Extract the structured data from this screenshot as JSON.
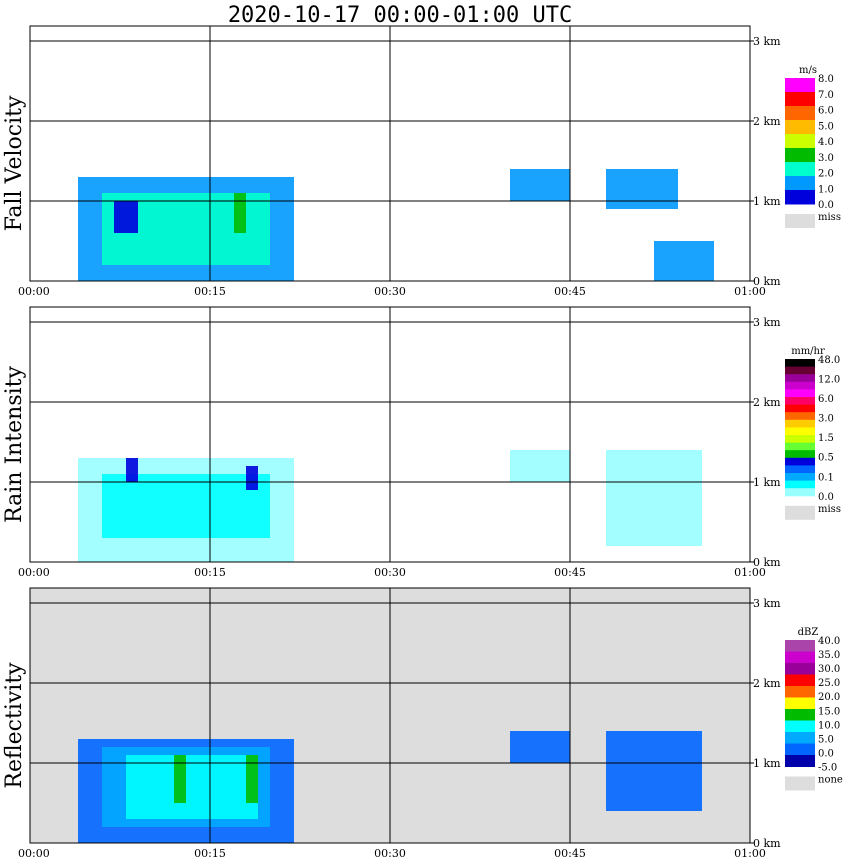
{
  "title": "2020-10-17   00:00-01:00 UTC",
  "chart_data": {
    "type": "heatmap",
    "x_ticks": [
      "00:00",
      "00:15",
      "00:30",
      "00:45",
      "01:00"
    ],
    "y_ticks": [
      "0 km",
      "1 km",
      "2 km",
      "3 km"
    ],
    "panels": [
      {
        "ylabel": "Fall Velocity",
        "background": "#ffffff",
        "colorbar": {
          "unit": "m/s",
          "labels": [
            "8.0",
            "7.0",
            "6.0",
            "5.0",
            "4.0",
            "3.0",
            "2.0",
            "1.0",
            "0.0"
          ],
          "colors": [
            "#ff00ff",
            "#ff0000",
            "#ff6600",
            "#ffbb00",
            "#ccff00",
            "#00bb00",
            "#00ffcc",
            "#0099ff",
            "#0000dd"
          ],
          "miss_label": "miss",
          "miss_color": "#dddddd"
        },
        "echoes": [
          {
            "t0": "00:04",
            "t1": "00:22",
            "z0": 0,
            "z1": 1.3,
            "color": "#0099ff"
          },
          {
            "t0": "00:06",
            "t1": "00:20",
            "z0": 0.2,
            "z1": 1.1,
            "color": "#00ffcc"
          },
          {
            "t0": "00:17",
            "t1": "00:18",
            "z0": 0.6,
            "z1": 1.1,
            "color": "#00bb00"
          },
          {
            "t0": "00:07",
            "t1": "00:09",
            "z0": 0.6,
            "z1": 1.0,
            "color": "#0000dd"
          },
          {
            "t0": "00:40",
            "t1": "00:45",
            "z0": 1.0,
            "z1": 1.4,
            "color": "#0099ff"
          },
          {
            "t0": "00:48",
            "t1": "00:54",
            "z0": 0.9,
            "z1": 1.4,
            "color": "#0099ff"
          },
          {
            "t0": "00:52",
            "t1": "00:57",
            "z0": 0.0,
            "z1": 0.5,
            "color": "#0099ff"
          }
        ]
      },
      {
        "ylabel": "Rain Intensity",
        "background": "#ffffff",
        "colorbar": {
          "unit": "mm/hr",
          "labels": [
            "48.0",
            "12.0",
            "6.0",
            "3.0",
            "1.5",
            "0.5",
            "0.1",
            "0.0"
          ],
          "colors": [
            "#000000",
            "#660033",
            "#990099",
            "#cc00cc",
            "#ff00ff",
            "#ff0066",
            "#ff0000",
            "#ff6600",
            "#ffcc00",
            "#ffff00",
            "#ccff00",
            "#66ff33",
            "#00bb00",
            "#0000dd",
            "#0066ff",
            "#00aaff",
            "#00ffff",
            "#99ffff"
          ],
          "miss_label": "miss",
          "miss_color": "#dddddd"
        },
        "echoes": [
          {
            "t0": "00:04",
            "t1": "00:22",
            "z0": 0,
            "z1": 1.3,
            "color": "#99ffff"
          },
          {
            "t0": "00:06",
            "t1": "00:20",
            "z0": 0.3,
            "z1": 1.1,
            "color": "#00ffff"
          },
          {
            "t0": "00:08",
            "t1": "00:09",
            "z0": 1.0,
            "z1": 1.3,
            "color": "#0000dd"
          },
          {
            "t0": "00:18",
            "t1": "00:19",
            "z0": 0.9,
            "z1": 1.2,
            "color": "#0000dd"
          },
          {
            "t0": "00:40",
            "t1": "00:45",
            "z0": 1.0,
            "z1": 1.4,
            "color": "#99ffff"
          },
          {
            "t0": "00:48",
            "t1": "00:56",
            "z0": 0.2,
            "z1": 1.4,
            "color": "#99ffff"
          }
        ]
      },
      {
        "ylabel": "Reflectivity",
        "background": "#dddddd",
        "colorbar": {
          "unit": "dBZ",
          "labels": [
            "40.0",
            "35.0",
            "30.0",
            "25.0",
            "20.0",
            "15.0",
            "10.0",
            "5.0",
            "0.0",
            "-5.0"
          ],
          "colors": [
            "#aa44aa",
            "#cc00cc",
            "#990099",
            "#ff0000",
            "#ff6600",
            "#ffff00",
            "#00bb00",
            "#00ffff",
            "#00aaff",
            "#0066ff",
            "#0000aa"
          ],
          "miss_label": "none",
          "miss_color": "#dddddd"
        },
        "echoes": [
          {
            "t0": "00:04",
            "t1": "00:22",
            "z0": 0,
            "z1": 1.3,
            "color": "#0066ff"
          },
          {
            "t0": "00:06",
            "t1": "00:20",
            "z0": 0.2,
            "z1": 1.2,
            "color": "#00aaff"
          },
          {
            "t0": "00:08",
            "t1": "00:19",
            "z0": 0.3,
            "z1": 1.1,
            "color": "#00ffff"
          },
          {
            "t0": "00:12",
            "t1": "00:13",
            "z0": 0.5,
            "z1": 1.1,
            "color": "#00bb00"
          },
          {
            "t0": "00:18",
            "t1": "00:19",
            "z0": 0.5,
            "z1": 1.1,
            "color": "#00bb00"
          },
          {
            "t0": "00:40",
            "t1": "00:45",
            "z0": 1.0,
            "z1": 1.4,
            "color": "#0066ff"
          },
          {
            "t0": "00:48",
            "t1": "00:56",
            "z0": 0.4,
            "z1": 1.4,
            "color": "#0066ff"
          }
        ]
      }
    ]
  }
}
